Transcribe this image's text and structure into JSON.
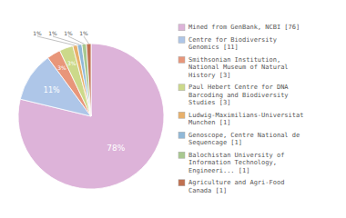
{
  "chart_data": {
    "type": "pie",
    "categories": [
      "Mined from GenBank, NCBI [76]",
      "Centre for Biodiversity\nGenomics [11]",
      "Smithsonian Institution,\nNational Museum of Natural\nHistory [3]",
      "Paul Hebert Centre for DNA\nBarcoding and Biodiversity\nStudies [3]",
      "Ludwig-Maximilians-Universitat\nMunchen [1]",
      "Genoscope, Centre National de\nSequencage [1]",
      "Balochistan University of\nInformation Technology,\nEngineeri... [1]",
      "Agriculture and Agri-Food\nCanada [1]"
    ],
    "values": [
      78,
      11,
      3,
      3,
      1,
      1,
      1,
      1
    ],
    "value_labels": [
      "78%",
      "11%",
      "3%",
      "3%",
      "1%",
      "1%",
      "1%",
      "1%"
    ],
    "colors": [
      "#ddb3d9",
      "#aec6e8",
      "#e8967a",
      "#ccd98a",
      "#e8b06a",
      "#90b8d8",
      "#a8c890",
      "#c07050"
    ],
    "data_labels": true,
    "legend": "right"
  }
}
